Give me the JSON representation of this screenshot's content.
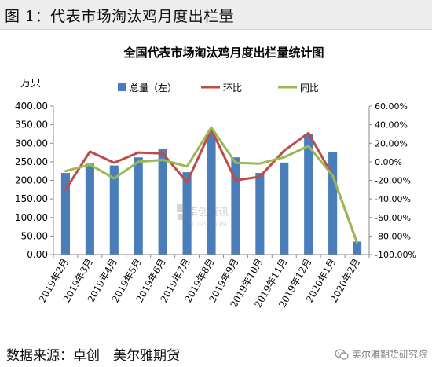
{
  "header": {
    "title": "图 1：代表市场淘汰鸡月度出栏量"
  },
  "footer": {
    "source": "数据来源：卓创　美尔雅期货",
    "brand": "美尔雅期货研究院"
  },
  "watermark": {
    "line1": "卓创资讯",
    "line2": "SCI99.COM"
  },
  "colors": {
    "bar": "#4a7ebb",
    "ring": "#be4b48",
    "yoy": "#98b954",
    "header_bg": "#ededed"
  },
  "chart_data": {
    "type": "bar",
    "title": "全国代表市场淘汰鸡月度出栏量统计图",
    "y_unit_label": "万只",
    "categories": [
      "2019年2月",
      "2019年3月",
      "2019年4月",
      "2019年5月",
      "2019年6月",
      "2019年7月",
      "2019年8月",
      "2019年9月",
      "2019年10月",
      "2019年11月",
      "2019年12月",
      "2020年1月",
      "2020年2月"
    ],
    "left_axis": {
      "min": 0,
      "max": 400,
      "step": 50,
      "ticks": [
        "0.00",
        "50.00",
        "100.00",
        "150.00",
        "200.00",
        "250.00",
        "300.00",
        "350.00",
        "400.00"
      ]
    },
    "right_axis": {
      "min": -100,
      "max": 60,
      "step": 20,
      "ticks": [
        "-100.00%",
        "-80.00%",
        "-60.00%",
        "-40.00%",
        "-20.00%",
        "0.00%",
        "20.00%",
        "40.00%",
        "60.00%"
      ]
    },
    "legend": {
      "position": "top",
      "items": [
        "总量（左）",
        "环比",
        "同比"
      ]
    },
    "series": [
      {
        "name": "总量（左）",
        "type": "bar",
        "axis": "left",
        "values": [
          220,
          245,
          240,
          262,
          285,
          222,
          330,
          262,
          220,
          248,
          325,
          277,
          35
        ]
      },
      {
        "name": "环比",
        "type": "line",
        "axis": "right",
        "values": [
          -30,
          11,
          -1,
          10,
          9,
          -22,
          35,
          -20,
          -16,
          12,
          31,
          -15,
          -87
        ]
      },
      {
        "name": "同比",
        "type": "line",
        "axis": "right",
        "values": [
          -10,
          -3,
          -18,
          0,
          2,
          -5,
          37,
          -1,
          -2,
          5,
          17,
          -15,
          -87
        ]
      }
    ]
  }
}
